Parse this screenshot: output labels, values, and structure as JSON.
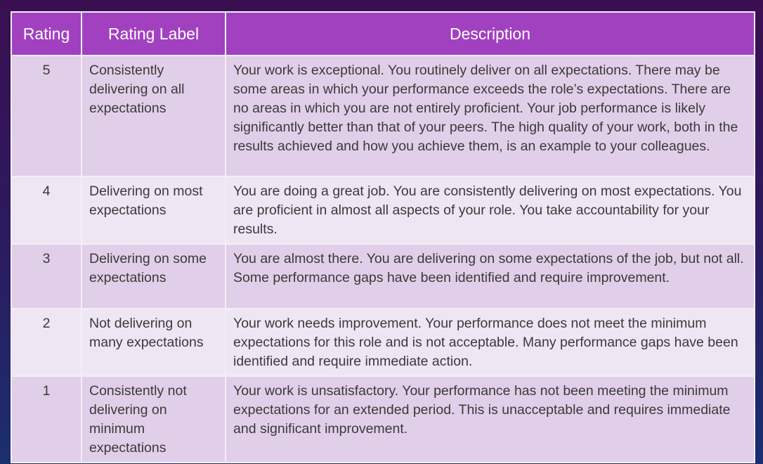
{
  "table": {
    "headers": [
      "Rating",
      "Rating Label",
      "Description"
    ],
    "header_color": "#a241c0",
    "rows": [
      {
        "rating": "5",
        "label": "Consistently delivering on all expectations",
        "description": "Your work is exceptional. You routinely deliver on all expectations. There may be some areas in which your performance exceeds the role’s expectations. There are no areas in which you are not entirely proficient. Your job performance is likely significantly better than that of your peers. The high quality of your work, both in the results achieved and how you achieve them, is an example to your colleagues."
      },
      {
        "rating": "4",
        "label": "Delivering on most expectations",
        "description": "You are doing a great job.  You are consistently delivering on most expectations.  You are proficient in almost all aspects of your role.  You take accountability for your results."
      },
      {
        "rating": "3",
        "label": "Delivering on some expectations",
        "description": "You are almost there. You are delivering on some expectations of the job, but not all. Some performance gaps have been identified and require improvement."
      },
      {
        "rating": "2",
        "label": "Not delivering on many expectations",
        "description": "Your work needs improvement.  Your performance does not meet the minimum expectations for this role and is not acceptable. Many performance gaps have been identified and require immediate action."
      },
      {
        "rating": "1",
        "label": "Consistently not delivering on minimum expectations",
        "description": "Your work is unsatisfactory.  Your performance has not been meeting the minimum expectations for an extended period.  This is unacceptable and requires immediate and significant improvement."
      }
    ]
  }
}
